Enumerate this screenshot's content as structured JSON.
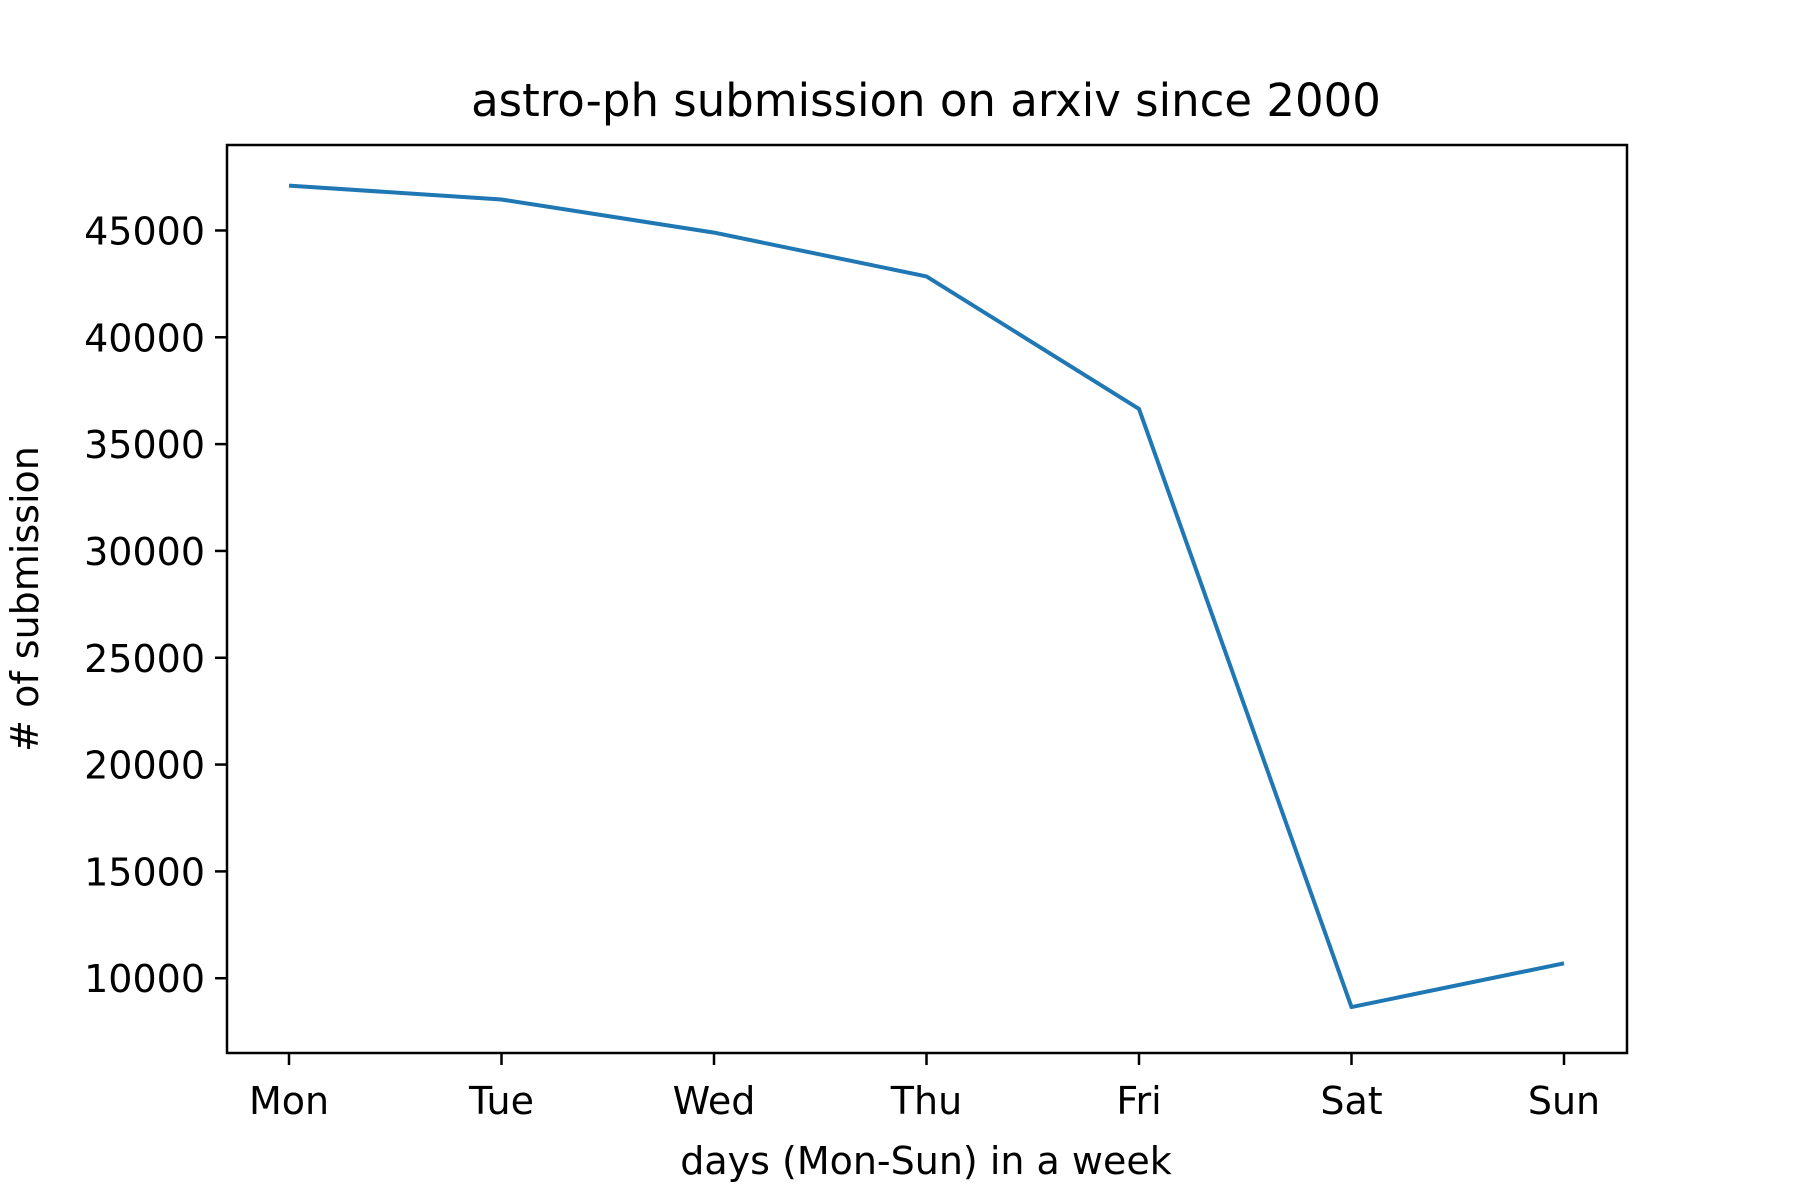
{
  "chart_data": {
    "type": "line",
    "title": "astro-ph submission on arxiv since 2000",
    "xlabel": "days (Mon-Sun) in a week",
    "ylabel": "# of submission",
    "categories": [
      "Mon",
      "Tue",
      "Wed",
      "Thu",
      "Fri",
      "Sat",
      "Sun"
    ],
    "series": [
      {
        "values": [
          47100,
          46450,
          44900,
          42850,
          36650,
          8650,
          10700
        ],
        "color": "#1f77b4"
      }
    ],
    "ylim": [
      6500,
      49000
    ],
    "yticks": [
      10000,
      15000,
      20000,
      25000,
      30000,
      35000,
      40000,
      45000
    ],
    "grid": false,
    "legend": "none"
  }
}
